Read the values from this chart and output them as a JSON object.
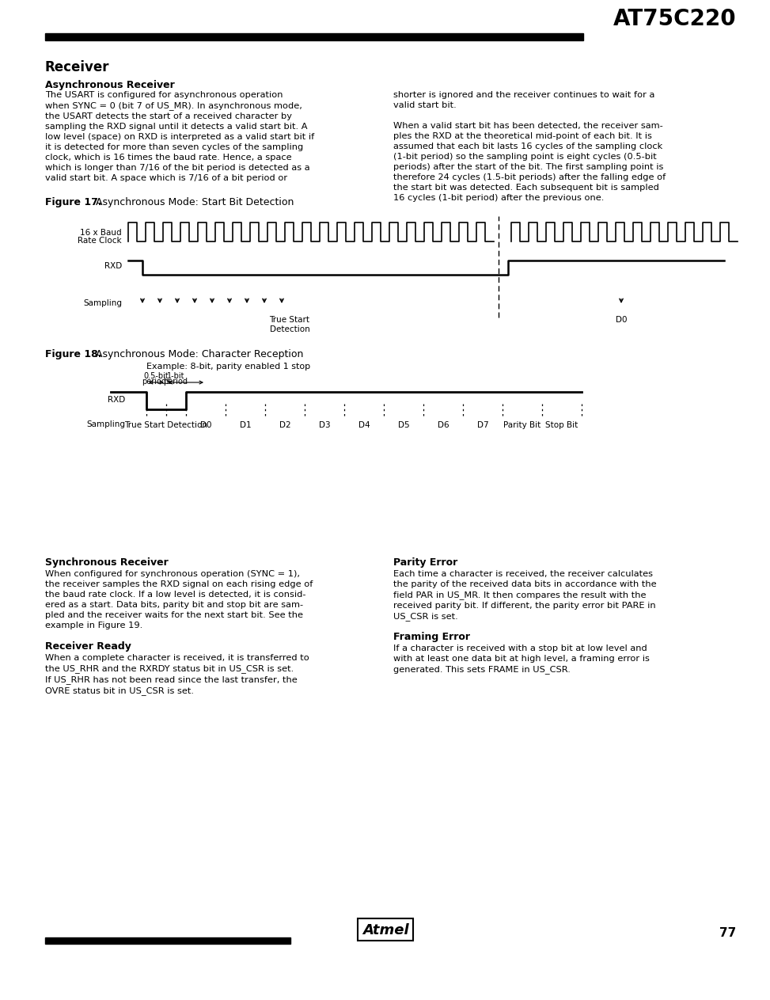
{
  "title": "AT75C220",
  "page_number": "77",
  "bg": "#ffffff",
  "section_title": "Receiver",
  "async_title": "Asynchronous Receiver",
  "async_left": "The USART is configured for asynchronous operation\nwhen SYNC = 0 (bit 7 of US_MR). In asynchronous mode,\nthe USART detects the start of a received character by\nsampling the RXD signal until it detects a valid start bit. A\nlow level (space) on RXD is interpreted as a valid start bit if\nit is detected for more than seven cycles of the sampling\nclock, which is 16 times the baud rate. Hence, a space\nwhich is longer than 7/16 of the bit period is detected as a\nvalid start bit. A space which is 7/16 of a bit period or",
  "async_right": "shorter is ignored and the receiver continues to wait for a\nvalid start bit.\n\nWhen a valid start bit has been detected, the receiver sam-\nples the RXD at the theoretical mid-point of each bit. It is\nassumed that each bit lasts 16 cycles of the sampling clock\n(1-bit period) so the sampling point is eight cycles (0.5-bit\nperiods) after the start of the bit. The first sampling point is\ntherefore 24 cycles (1.5-bit periods) after the falling edge of\nthe start bit was detected. Each subsequent bit is sampled\n16 cycles (1-bit period) after the previous one.",
  "fig17_bold": "Figure 17.",
  "fig17_rest": "  Asynchronous Mode: Start Bit Detection",
  "fig18_bold": "Figure 18.",
  "fig18_rest": "  Asynchronous Mode: Character Reception",
  "fig18_example": "Example: 8-bit, parity enabled 1 stop",
  "sync_title": "Synchronous Receiver",
  "sync_text": "When configured for synchronous operation (SYNC = 1),\nthe receiver samples the RXD signal on each rising edge of\nthe baud rate clock. If a low level is detected, it is consid-\nered as a start. Data bits, parity bit and stop bit are sam-\npled and the receiver waits for the next start bit. See the\nexample in Figure 19.",
  "rr_title": "Receiver Ready",
  "rr_text": "When a complete character is received, it is transferred to\nthe US_RHR and the RXRDY status bit in US_CSR is set.\nIf US_RHR has not been read since the last transfer, the\nOVRE status bit in US_CSR is set.",
  "pe_title": "Parity Error",
  "pe_text": "Each time a character is received, the receiver calculates\nthe parity of the received data bits in accordance with the\nfield PAR in US_MR. It then compares the result with the\nreceived parity bit. If different, the parity error bit PARE in\nUS_CSR is set.",
  "fe_title": "Framing Error",
  "fe_text": "If a character is received with a stop bit at low level and\nwith at least one data bit at high level, a framing error is\ngenerated. This sets FRAME in US_CSR."
}
